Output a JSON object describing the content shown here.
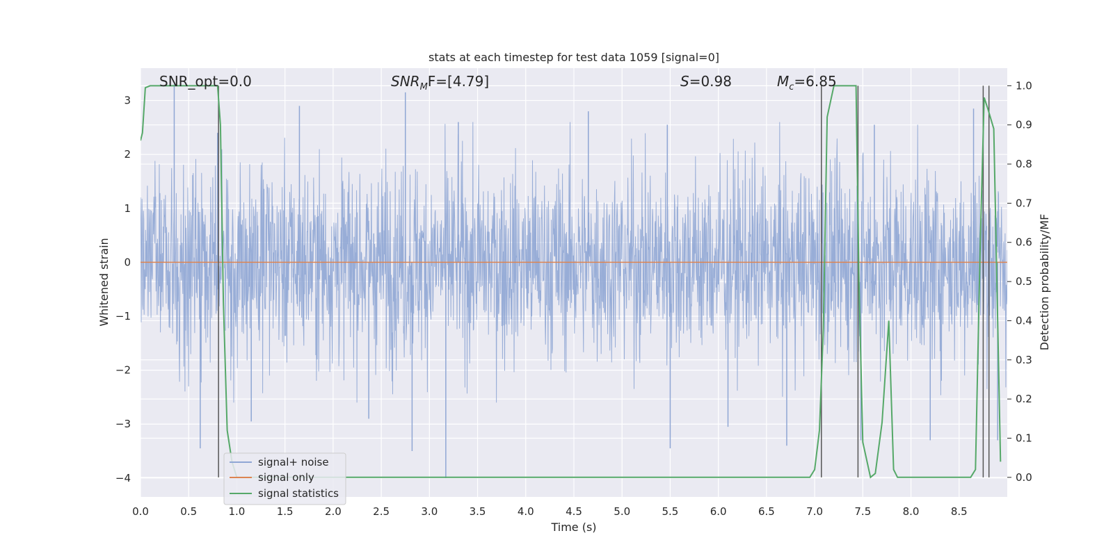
{
  "chart_data": {
    "type": "line",
    "title": "stats at each timestep for test data 1059 [signal=0]",
    "xlabel": "Time (s)",
    "ylabel": "Whitened strain",
    "ylabel_right": "Detection probability/MF",
    "xlim": [
      0.0,
      9.0
    ],
    "ylim": [
      -4.35,
      3.6
    ],
    "ylim_right": [
      -0.05,
      1.045
    ],
    "x_ticks": [
      "0.0",
      "0.5",
      "1.0",
      "1.5",
      "2.0",
      "2.5",
      "3.0",
      "3.5",
      "4.0",
      "4.5",
      "5.0",
      "5.5",
      "6.0",
      "6.5",
      "7.0",
      "7.5",
      "8.0",
      "8.5"
    ],
    "y_ticks": [
      "3",
      "2",
      "1",
      "0",
      "−1",
      "−2",
      "−3",
      "−4"
    ],
    "y_ticks_right": [
      "1.0",
      "0.9",
      "0.8",
      "0.7",
      "0.6",
      "0.5",
      "0.4",
      "0.3",
      "0.2",
      "0.1",
      "0.0"
    ],
    "grid": true,
    "legend_position": "lower-left",
    "annotations": {
      "snr_opt": "SNR_opt=0.0",
      "snr_mf_sub": "M",
      "snr_mf_rest": "F=[4.79]",
      "snr_mf_main": "SNR",
      "s_var": "S",
      "s_rest": "=0.98",
      "mc_var": "M",
      "mc_sub": "c",
      "mc_rest": "=6.85"
    },
    "series": [
      {
        "name": "signal+ noise",
        "color": "#8fa6d4",
        "axis": "left",
        "kind": "noise",
        "std": 0.9,
        "peaks": [
          [
            0.35,
            3.3
          ],
          [
            0.62,
            -3.45
          ],
          [
            0.8,
            2.4
          ],
          [
            1.15,
            -2.95
          ],
          [
            1.65,
            2.9
          ],
          [
            2.37,
            -2.9
          ],
          [
            2.75,
            3.15
          ],
          [
            2.82,
            -3.5
          ],
          [
            3.17,
            -4.0
          ],
          [
            3.3,
            2.6
          ],
          [
            4.65,
            2.8
          ],
          [
            5.47,
            2.55
          ],
          [
            5.5,
            -3.45
          ],
          [
            6.1,
            -3.05
          ],
          [
            6.71,
            -3.4
          ],
          [
            7.48,
            -3.3
          ],
          [
            7.62,
            2.55
          ],
          [
            8.2,
            -3.3
          ],
          [
            8.65,
            2.85
          ],
          [
            8.9,
            -3.3
          ]
        ]
      },
      {
        "name": "signal only",
        "color": "#dd8452",
        "axis": "left",
        "x": [
          0.0,
          9.0
        ],
        "y": [
          0.0,
          0.0
        ]
      },
      {
        "name": "signal statistics",
        "color": "#55a868",
        "axis": "right",
        "x": [
          0.0,
          0.02,
          0.05,
          0.1,
          0.2,
          0.3,
          0.5,
          0.75,
          0.8,
          0.83,
          0.86,
          0.9,
          0.95,
          1.0,
          1.5,
          2.0,
          3.0,
          4.0,
          5.0,
          6.0,
          6.5,
          6.8,
          6.95,
          7.0,
          7.05,
          7.09,
          7.13,
          7.2,
          7.3,
          7.43,
          7.46,
          7.5,
          7.58,
          7.63,
          7.7,
          7.77,
          7.82,
          7.86,
          7.92,
          8.0,
          8.5,
          8.62,
          8.67,
          8.72,
          8.76,
          8.8,
          8.86,
          8.9,
          8.93
        ],
        "y": [
          0.86,
          0.88,
          0.995,
          1.0,
          1.0,
          1.0,
          1.0,
          1.0,
          1.0,
          0.9,
          0.45,
          0.12,
          0.04,
          0.0,
          0.0,
          0.0,
          0.0,
          0.0,
          0.0,
          0.0,
          0.0,
          0.0,
          0.0,
          0.02,
          0.12,
          0.38,
          0.92,
          1.0,
          1.0,
          1.0,
          0.5,
          0.09,
          0.0,
          0.01,
          0.14,
          0.4,
          0.02,
          0.0,
          0.0,
          0.0,
          0.0,
          0.0,
          0.02,
          0.6,
          0.97,
          0.94,
          0.89,
          0.4,
          0.04
        ]
      }
    ],
    "vertical_lines": [
      0.81,
      7.07,
      7.45,
      8.75,
      8.81
    ],
    "vertical_line_color": "#555555"
  }
}
